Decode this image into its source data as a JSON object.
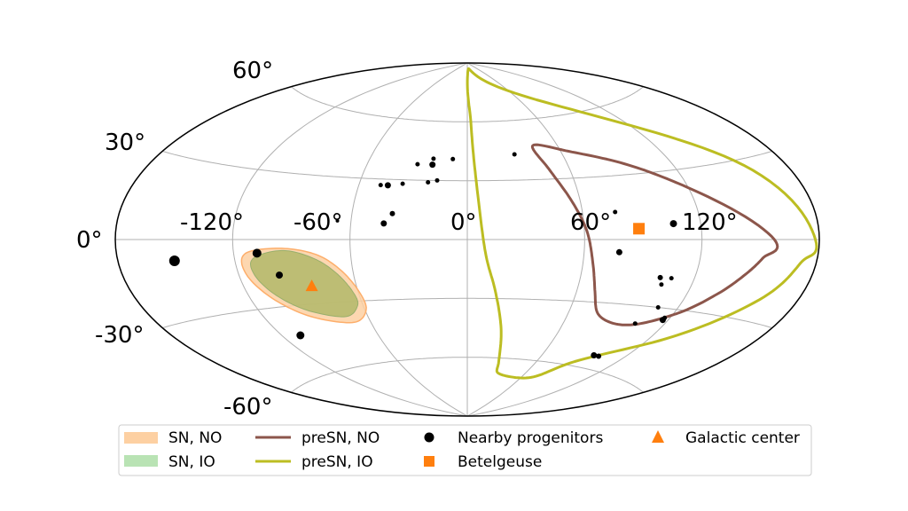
{
  "chart_data": {
    "type": "scatter",
    "projection": "aitoff",
    "grid": true,
    "x_ticks": [
      "-120°",
      "-60°",
      "0°",
      "60°",
      "120°"
    ],
    "x_tick_values": [
      -120,
      -60,
      0,
      60,
      120
    ],
    "y_ticks": [
      "60°",
      "30°",
      "0°",
      "-30°",
      "-60°"
    ],
    "y_tick_values": [
      60,
      30,
      0,
      -30,
      -60
    ],
    "legend_placement": "bottom",
    "legend": {
      "sn_no": "SN, NO",
      "sn_io": "SN, IO",
      "presn_no": "preSN, NO",
      "presn_io": "preSN, IO",
      "progenitors": "Nearby progenitors",
      "betelgeuse": "Betelgeuse",
      "galactic_center": "Galactic center"
    },
    "colors": {
      "sn_no_fill": "#fdd0a2",
      "sn_no_edge": "#fdae6b",
      "sn_io_fill": "#a1d99b",
      "presn_no": "#8c564b",
      "presn_io": "#bcbd22",
      "marker": "#ff7f0e",
      "point": "#000000",
      "grid": "#b0b0b0"
    },
    "galactic_center": [
      -84,
      -22
    ],
    "betelgeuse": [
      88,
      5
    ],
    "nearby_progenitors": [
      {
        "lon": -151,
        "lat": -8,
        "size": 6
      },
      {
        "lon": -108,
        "lat": -6,
        "size": 5
      },
      {
        "lon": -99,
        "lat": -16,
        "size": 4
      },
      {
        "lon": -109,
        "lat": -43,
        "size": 4.5
      },
      {
        "lon": -43,
        "lat": 8,
        "size": 3.5
      },
      {
        "lon": -39,
        "lat": 13,
        "size": 3
      },
      {
        "lon": -48,
        "lat": 27,
        "size": 2.5
      },
      {
        "lon": -44,
        "lat": 27,
        "size": 3.5
      },
      {
        "lon": -36,
        "lat": 28,
        "size": 2.5
      },
      {
        "lon": -22,
        "lat": 29,
        "size": 2.5
      },
      {
        "lon": -17,
        "lat": 30,
        "size": 2.5
      },
      {
        "lon": -30,
        "lat": 38,
        "size": 2.5
      },
      {
        "lon": -21,
        "lat": 38,
        "size": 3.5
      },
      {
        "lon": -21,
        "lat": 41,
        "size": 2.5
      },
      {
        "lon": -9,
        "lat": 41,
        "size": 2.5
      },
      {
        "lon": 30,
        "lat": 43,
        "size": 2.5
      },
      {
        "lon": -67,
        "lat": 9,
        "size": 2
      },
      {
        "lon": 77,
        "lat": 13,
        "size": 2.5
      },
      {
        "lon": 106,
        "lat": 7,
        "size": 4
      },
      {
        "lon": 78,
        "lat": -6,
        "size": 3.5
      },
      {
        "lon": 102,
        "lat": -17,
        "size": 3
      },
      {
        "lon": 108,
        "lat": -17,
        "size": 2.5
      },
      {
        "lon": 104,
        "lat": -20,
        "size": 2.5
      },
      {
        "lon": 109,
        "lat": -30,
        "size": 2.5
      },
      {
        "lon": 117,
        "lat": -35,
        "size": 3.5
      },
      {
        "lon": 117,
        "lat": -34,
        "size": 2.5
      },
      {
        "lon": 103,
        "lat": -38,
        "size": 2.5
      },
      {
        "lon": 98,
        "lat": -54,
        "size": 3.5
      },
      {
        "lon": 102,
        "lat": -54,
        "size": 3
      }
    ],
    "sn_no_region": [
      [
        -114,
        -6
      ],
      [
        -95,
        -4
      ],
      [
        -78,
        -7
      ],
      [
        -67,
        -14
      ],
      [
        -60,
        -24
      ],
      [
        -59,
        -34
      ],
      [
        -70,
        -40
      ],
      [
        -92,
        -36
      ],
      [
        -107,
        -27
      ],
      [
        -116,
        -15
      ]
    ],
    "sn_io_region": [
      [
        -110,
        -8
      ],
      [
        -94,
        -5
      ],
      [
        -79,
        -9
      ],
      [
        -69,
        -16
      ],
      [
        -63,
        -25
      ],
      [
        -63,
        -32
      ],
      [
        -73,
        -37
      ],
      [
        -92,
        -33
      ],
      [
        -105,
        -25
      ],
      [
        -112,
        -15
      ]
    ],
    "presn_no_contour": [
      [
        44,
        47
      ],
      [
        65,
        43
      ],
      [
        93,
        35
      ],
      [
        120,
        22
      ],
      [
        157,
        0
      ],
      [
        152,
        -7
      ],
      [
        145,
        -14
      ],
      [
        136,
        -22
      ],
      [
        123,
        -31
      ],
      [
        105,
        -38
      ],
      [
        90,
        -39
      ],
      [
        77,
        -35
      ],
      [
        70,
        -25
      ],
      [
        65,
        -11
      ],
      [
        61,
        5
      ],
      [
        55,
        20
      ],
      [
        48,
        35
      ]
    ],
    "presn_io_contour": [
      [
        3,
        86
      ],
      [
        40,
        80
      ],
      [
        100,
        60
      ],
      [
        155,
        30
      ],
      [
        178,
        0
      ],
      [
        172,
        -8
      ],
      [
        160,
        -22
      ],
      [
        130,
        -42
      ],
      [
        90,
        -58
      ],
      [
        70,
        -68
      ],
      [
        35,
        -68
      ],
      [
        28,
        -62
      ],
      [
        22,
        -45
      ],
      [
        15,
        -25
      ],
      [
        9,
        -5
      ],
      [
        5,
        30
      ],
      [
        3,
        60
      ]
    ]
  }
}
